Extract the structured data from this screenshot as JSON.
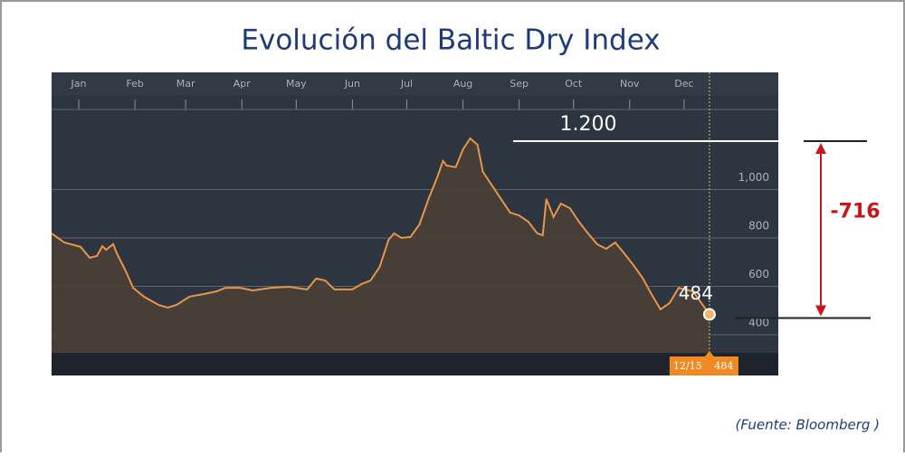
{
  "chart_data": {
    "type": "area",
    "title": "Evolución del Baltic Dry Index",
    "source": "(Fuente: Bloomberg )",
    "x": [
      -14,
      -7,
      2,
      7,
      11,
      14,
      16,
      20,
      22,
      27,
      31,
      37,
      45,
      50,
      55,
      62,
      70,
      77,
      82,
      90,
      97,
      107,
      117,
      127,
      132,
      137,
      142,
      152,
      157,
      162,
      167,
      172,
      175,
      179,
      184,
      189,
      194,
      199,
      202,
      204,
      209,
      213,
      217,
      221,
      224,
      229,
      234,
      239,
      244,
      249,
      254,
      257,
      259,
      263,
      267,
      272,
      277,
      282,
      287,
      292,
      297,
      302,
      307,
      312,
      317,
      322,
      327,
      332,
      340,
      349
    ],
    "values": [
      819,
      781,
      763,
      718,
      725,
      766,
      751,
      774,
      736,
      662,
      594,
      557,
      523,
      512,
      523,
      557,
      568,
      579,
      594,
      594,
      583,
      594,
      598,
      587,
      632,
      624,
      587,
      587,
      609,
      624,
      680,
      793,
      819,
      800,
      804,
      856,
      961,
      1054,
      1118,
      1099,
      1092,
      1166,
      1211,
      1185,
      1073,
      1017,
      961,
      905,
      893,
      867,
      819,
      811,
      961,
      886,
      942,
      923,
      867,
      819,
      774,
      755,
      781,
      736,
      688,
      636,
      568,
      505,
      531,
      594,
      579,
      484
    ],
    "color": "#e8954a",
    "xlim": [
      -14,
      387
    ],
    "ylim": [
      325,
      1484
    ],
    "xticks": [
      {
        "value": 1,
        "label": "Jan"
      },
      {
        "value": 32,
        "label": "Feb"
      },
      {
        "value": 60,
        "label": "Mar"
      },
      {
        "value": 91,
        "label": "Apr"
      },
      {
        "value": 121,
        "label": "May"
      },
      {
        "value": 152,
        "label": "Jun"
      },
      {
        "value": 182,
        "label": "Jul"
      },
      {
        "value": 213,
        "label": "Aug"
      },
      {
        "value": 244,
        "label": "Sep"
      },
      {
        "value": 274,
        "label": "Oct"
      },
      {
        "value": 305,
        "label": "Nov"
      },
      {
        "value": 335,
        "label": "Dec"
      }
    ],
    "yticks": [
      400,
      600,
      800,
      {
        "value": 1000,
        "label": "1,000"
      }
    ],
    "grid": true,
    "cursor_label": "12/15",
    "high_mark": {
      "value": 1200,
      "label": "1.200"
    },
    "change": -716
  }
}
